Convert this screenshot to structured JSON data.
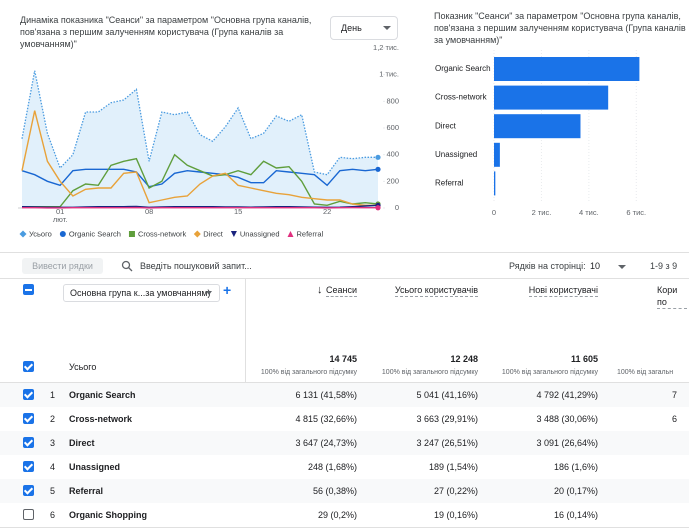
{
  "chart_data": [
    {
      "type": "line",
      "title": "Динаміка показника \"Сеанси\" за параметром \"Основна група каналів, пов'язана з першим залученням користувача (Група каналів за умовчанням)\"",
      "period_selector": "День",
      "categories": [
        null,
        null,
        null,
        "01",
        null,
        null,
        null,
        null,
        null,
        null,
        "08",
        null,
        null,
        null,
        null,
        null,
        null,
        "15",
        null,
        null,
        null,
        null,
        null,
        null,
        "22",
        null,
        null,
        null,
        null
      ],
      "x_month": "лют.",
      "ylim": [
        0,
        1200
      ],
      "yticks": [
        0,
        200,
        400,
        600,
        800,
        {
          "value": 1000,
          "label": "1 тис."
        },
        {
          "value": 1200,
          "label": "1,2 тис."
        }
      ],
      "series": [
        {
          "name": "Усього",
          "color": "#4a9be0",
          "style": "dotted",
          "fill": "#e1f0fb",
          "marker": "diamond",
          "values": [
            520,
            1030,
            560,
            300,
            400,
            720,
            720,
            790,
            810,
            890,
            350,
            720,
            700,
            720,
            550,
            500,
            610,
            750,
            520,
            560,
            690,
            650,
            700,
            270,
            250,
            380,
            370,
            380,
            380
          ]
        },
        {
          "name": "Organic Search",
          "color": "#1967d2",
          "style": "solid",
          "marker": "circle",
          "values": [
            280,
            250,
            200,
            170,
            280,
            290,
            290,
            290,
            290,
            270,
            160,
            180,
            260,
            280,
            270,
            260,
            250,
            230,
            190,
            190,
            280,
            270,
            260,
            250,
            170,
            280,
            290,
            280,
            290
          ]
        },
        {
          "name": "Cross-network",
          "color": "#5f9e3c",
          "style": "solid",
          "marker": "square",
          "values": [
            10,
            10,
            10,
            10,
            130,
            180,
            170,
            320,
            350,
            370,
            150,
            200,
            400,
            320,
            280,
            240,
            250,
            280,
            250,
            350,
            300,
            310,
            200,
            30,
            20,
            50,
            30,
            40,
            30
          ]
        },
        {
          "name": "Direct",
          "color": "#e8a23a",
          "style": "solid",
          "marker": "diamond",
          "values": [
            280,
            730,
            350,
            200,
            90,
            140,
            150,
            150,
            260,
            270,
            40,
            60,
            80,
            90,
            180,
            240,
            260,
            170,
            150,
            130,
            110,
            100,
            80,
            70,
            60,
            60,
            30,
            20,
            20
          ]
        },
        {
          "name": "Unassigned",
          "color": "#1a237e",
          "style": "solid",
          "marker": "triangle-down",
          "values": [
            10,
            8,
            6,
            5,
            5,
            8,
            10,
            10,
            10,
            12,
            5,
            8,
            10,
            10,
            10,
            10,
            8,
            8,
            6,
            8,
            10,
            10,
            8,
            6,
            5,
            6,
            10,
            15,
            20
          ]
        },
        {
          "name": "Referral",
          "color": "#e0307f",
          "style": "solid",
          "marker": "triangle-up",
          "values": [
            2,
            2,
            1,
            1,
            2,
            2,
            2,
            2,
            2,
            3,
            1,
            2,
            2,
            2,
            2,
            2,
            2,
            2,
            2,
            2,
            2,
            2,
            2,
            2,
            1,
            2,
            3,
            2,
            2
          ]
        }
      ]
    },
    {
      "type": "hbar",
      "title": "Показник \"Сеанси\" за параметром \"Основна група каналів, пов'язана з першим залученням користувача (Група каналів за умовчанням)\"",
      "categories": [
        "Organic Search",
        "Cross-network",
        "Direct",
        "Unassigned",
        "Referral"
      ],
      "values": [
        6131,
        4815,
        3647,
        248,
        56
      ],
      "color": "#1a73e8",
      "xlim": [
        0,
        7000
      ],
      "xticks": [
        0,
        {
          "value": 2000,
          "label": "2 тис."
        },
        {
          "value": 4000,
          "label": "4 тис."
        },
        {
          "value": 6000,
          "label": "6 тис."
        }
      ],
      "grid": true
    }
  ],
  "toolbar": {
    "show_rows_button": "Вивести рядки",
    "search_placeholder": "Введіть пошуковий запит...",
    "rows_per_page_label": "Рядків на сторінці:",
    "rows_per_page": "10",
    "pagination": "1-9 з 9"
  },
  "table": {
    "dimension": "Основна група к...за умовчанням)",
    "column_headers": [
      "Сеанси",
      "Усього користувачів",
      "Нові користувачі",
      "Кори по"
    ],
    "total": {
      "label": "Усього",
      "values": [
        "14 745",
        "12 248",
        "11 605",
        null
      ],
      "notes": [
        "100% від загального підсумку",
        "100% від загального підсумку",
        "100% від загального підсумку",
        "100% від загальн"
      ]
    },
    "rows": [
      {
        "num": "1",
        "name": "Organic Search",
        "checked": true,
        "cells": [
          "6 131 (41,58%)",
          "5 041 (41,16%)",
          "4 792 (41,29%)",
          "7"
        ]
      },
      {
        "num": "2",
        "name": "Cross-network",
        "checked": true,
        "cells": [
          "4 815 (32,66%)",
          "3 663 (29,91%)",
          "3 488 (30,06%)",
          "6"
        ]
      },
      {
        "num": "3",
        "name": "Direct",
        "checked": true,
        "cells": [
          "3 647 (24,73%)",
          "3 247 (26,51%)",
          "3 091 (26,64%)",
          null
        ]
      },
      {
        "num": "4",
        "name": "Unassigned",
        "checked": true,
        "cells": [
          "248 (1,68%)",
          "189 (1,54%)",
          "186 (1,6%)",
          null
        ]
      },
      {
        "num": "5",
        "name": "Referral",
        "checked": true,
        "cells": [
          "56 (0,38%)",
          "27 (0,22%)",
          "20 (0,17%)",
          null
        ]
      },
      {
        "num": "6",
        "name": "Organic Shopping",
        "checked": false,
        "cells": [
          "29 (0,2%)",
          "19 (0,16%)",
          "16 (0,14%)",
          null
        ]
      }
    ]
  }
}
